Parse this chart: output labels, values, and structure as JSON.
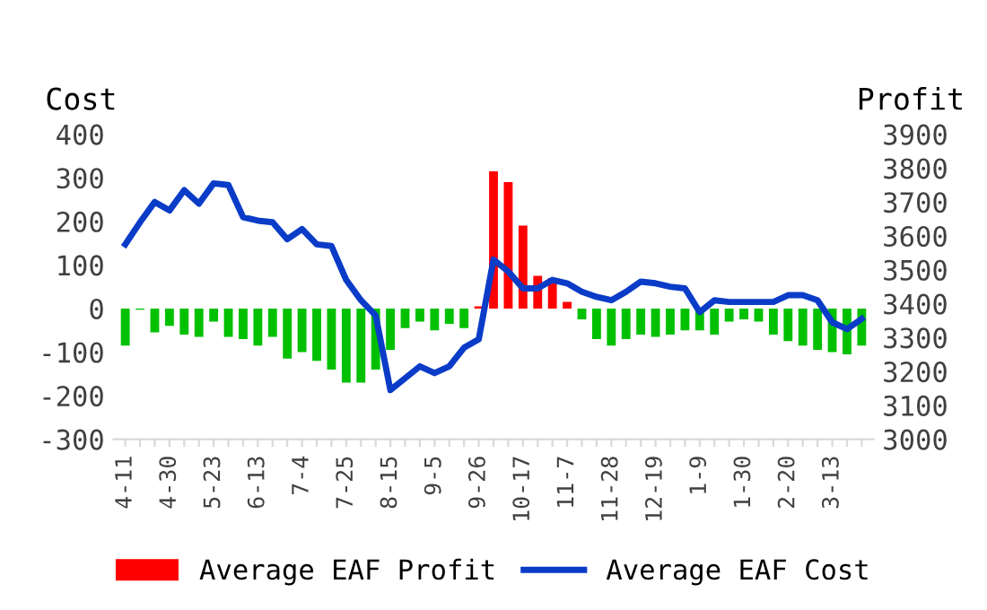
{
  "chart_data": {
    "type": "bar",
    "ylabel": "Cost",
    "y2label": "Profit",
    "categories": [
      "4-11",
      null,
      null,
      "4-30",
      null,
      null,
      "5-23",
      null,
      null,
      "6-13",
      null,
      null,
      "7-4",
      null,
      null,
      "7-25",
      null,
      null,
      "8-15",
      null,
      null,
      "9-5",
      null,
      null,
      "9-26",
      null,
      null,
      "10-17",
      null,
      null,
      "11-7",
      null,
      null,
      "11-28",
      null,
      null,
      "12-19",
      null,
      null,
      "1-9",
      null,
      null,
      "1-30",
      null,
      null,
      "2-20",
      null,
      null,
      "3-13",
      null,
      null
    ],
    "series": [
      {
        "name": "Average EAF Profit",
        "color": "#ff0000",
        "colors": [
          "#00c000",
          "#00c000",
          "#00c000",
          "#00c000",
          "#00c000",
          "#00c000",
          "#00c000",
          "#00c000",
          "#00c000",
          "#00c000",
          "#00c000",
          "#00c000",
          "#00c000",
          "#00c000",
          "#00c000",
          "#00c000",
          "#00c000",
          "#00c000",
          "#00c000",
          "#00c000",
          "#00c000",
          "#00c000",
          "#00c000",
          "#00c000",
          "#ff0000",
          "#ff0000",
          "#ff0000",
          "#ff0000",
          "#ff0000",
          "#ff0000",
          "#ff0000",
          "#00c000",
          "#00c000",
          "#00c000",
          "#00c000",
          "#00c000",
          "#00c000",
          "#00c000",
          "#00c000",
          "#00c000",
          "#00c000",
          "#00c000",
          "#00c000",
          "#00c000",
          "#00c000",
          "#00c000",
          "#00c000",
          "#00c000",
          "#00c000",
          "#00c000",
          "#00c000"
        ],
        "values": [
          -85,
          -3,
          -55,
          -40,
          -60,
          -65,
          -30,
          -65,
          -70,
          -85,
          -65,
          -115,
          -100,
          -120,
          -140,
          -170,
          -170,
          -140,
          -95,
          -45,
          -30,
          -50,
          -35,
          -45,
          5,
          315,
          290,
          190,
          75,
          70,
          15,
          -25,
          -70,
          -85,
          -70,
          -60,
          -65,
          -60,
          -50,
          -50,
          -60,
          -30,
          -25,
          -30,
          -60,
          -75,
          -85,
          -95,
          -100,
          -105,
          -85
        ]
      },
      {
        "name": "Average EAF Cost",
        "type": "line",
        "axis": "y2",
        "color": "#0a3cc8",
        "values": [
          3575,
          3640,
          3700,
          3675,
          3735,
          3695,
          3755,
          3750,
          3655,
          3645,
          3640,
          3590,
          3620,
          3575,
          3570,
          3470,
          3410,
          3365,
          3145,
          3180,
          3215,
          3195,
          3215,
          3270,
          3295,
          3530,
          3495,
          3445,
          3445,
          3470,
          3460,
          3435,
          3420,
          3410,
          3435,
          3465,
          3460,
          3450,
          3445,
          3375,
          3410,
          3405,
          3405,
          3405,
          3405,
          3425,
          3425,
          3410,
          3345,
          3325,
          3355
        ]
      }
    ],
    "ylim": [
      -300,
      400
    ],
    "yticks": [
      -300,
      -200,
      -100,
      0,
      100,
      200,
      300,
      400
    ],
    "y2lim": [
      3000,
      3900
    ],
    "y2ticks": [
      3000,
      3100,
      3200,
      3300,
      3400,
      3500,
      3600,
      3700,
      3800,
      3900
    ],
    "legend": "bottom",
    "line_style": "solid",
    "marker": "none"
  }
}
